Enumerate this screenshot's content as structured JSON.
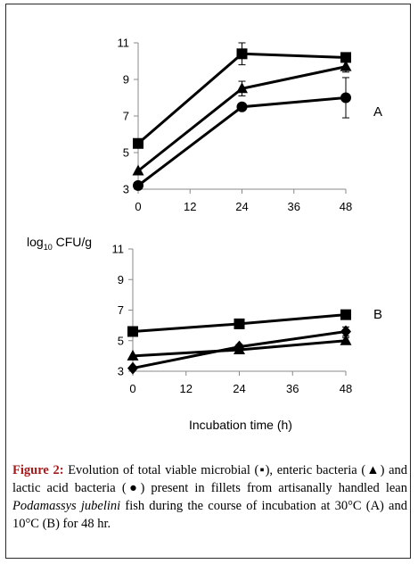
{
  "chart_data": [
    {
      "type": "line",
      "panel": "A",
      "x": [
        0,
        24,
        48
      ],
      "xticks": [
        "0",
        "12",
        "24",
        "36",
        "48"
      ],
      "xlim": [
        0,
        48
      ],
      "ylim": [
        3,
        11
      ],
      "yticks": [
        "3",
        "5",
        "7",
        "9",
        "11"
      ],
      "ylabel_prefix": "log",
      "ylabel_sub": "10",
      "ylabel_suffix": " CFU/g",
      "series": [
        {
          "marker": "square",
          "values": [
            5.5,
            10.4,
            10.2
          ],
          "errors": [
            0,
            0.6,
            0.2
          ]
        },
        {
          "marker": "triangle",
          "values": [
            4.0,
            8.5,
            9.7
          ],
          "errors": [
            0,
            0.4,
            0.3
          ]
        },
        {
          "marker": "circle",
          "values": [
            3.2,
            7.5,
            8.0
          ],
          "errors": [
            0,
            0.2,
            1.1
          ]
        }
      ]
    },
    {
      "type": "line",
      "panel": "B",
      "x": [
        0,
        24,
        48
      ],
      "xticks": [
        "0",
        "12",
        "24",
        "36",
        "48"
      ],
      "xlim": [
        0,
        48
      ],
      "ylim": [
        3,
        11
      ],
      "yticks": [
        "3",
        "5",
        "7",
        "9",
        "11"
      ],
      "xlabel": "Incubation time (h)",
      "series": [
        {
          "marker": "square",
          "values": [
            5.6,
            6.1,
            6.7
          ],
          "errors": [
            0,
            0.15,
            0.1
          ]
        },
        {
          "marker": "triangle",
          "values": [
            4.0,
            4.4,
            5.0
          ],
          "errors": [
            0,
            0.25,
            0.2
          ]
        },
        {
          "marker": "diamond",
          "values": [
            3.2,
            4.6,
            5.6
          ],
          "errors": [
            0,
            0.15,
            0.3
          ]
        }
      ]
    }
  ],
  "caption": {
    "figure_label": "Figure 2:",
    "part1": " Evolution of total viable microbial (",
    "square_glyph": "▪",
    "part2": "), enteric bacteria (",
    "triangle_glyph": "▲",
    "part3": ") and lactic acid bacteria (",
    "circle_glyph": "●",
    "part4": ") present in fillets from artisanally handled lean ",
    "species": "Podamassys jubelini",
    "part5": " fish during the course of incubation at 30°C (A) and 10°C (B) for 48 hr."
  }
}
